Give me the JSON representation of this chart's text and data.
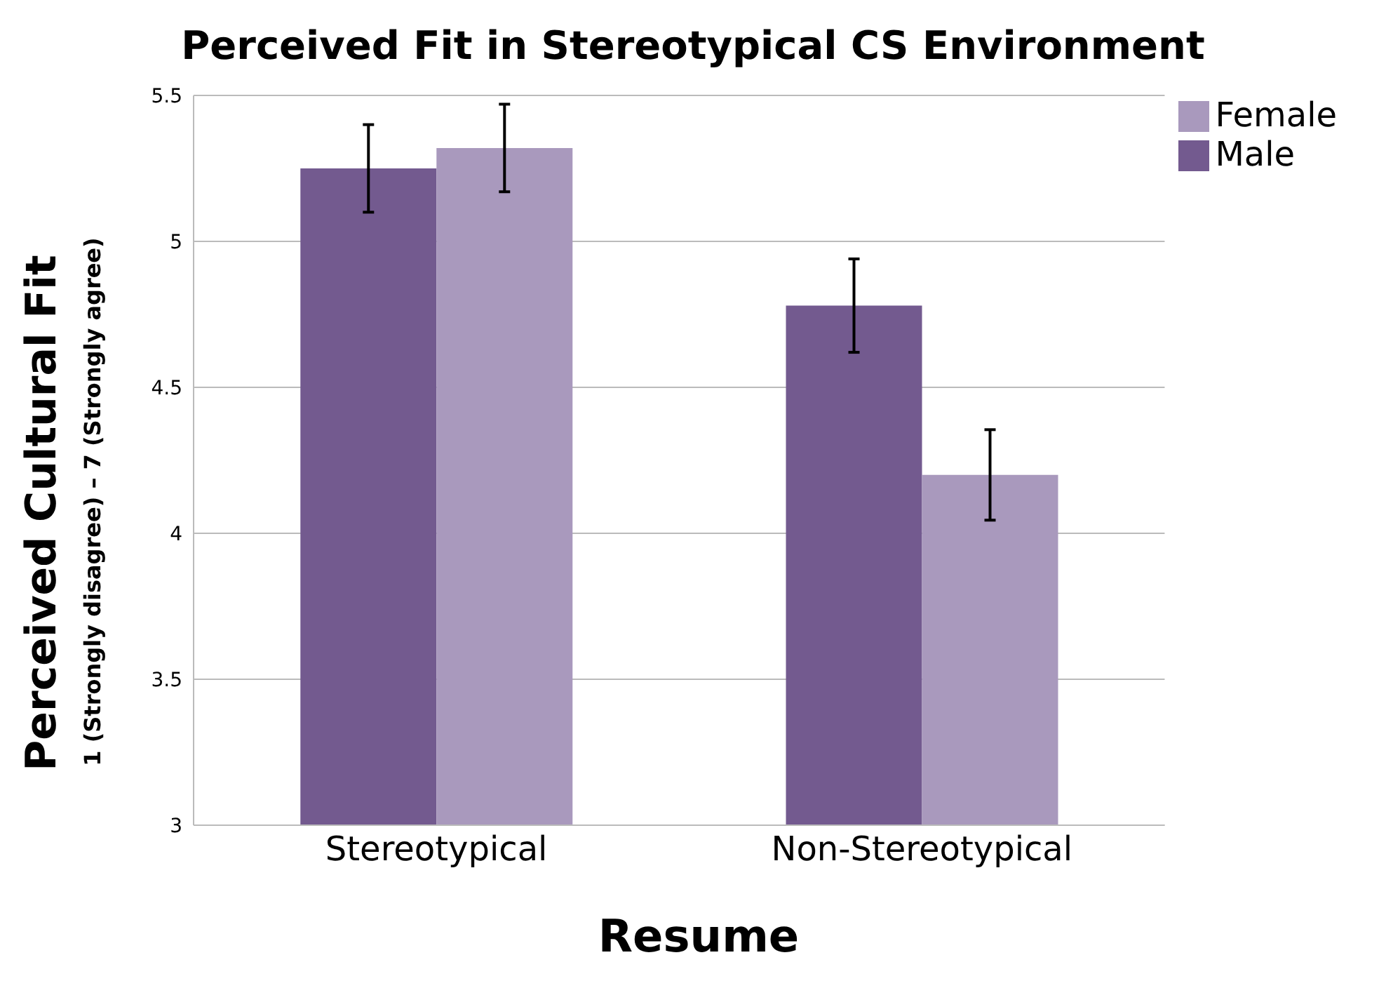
{
  "chart_data": {
    "type": "bar",
    "title": "Perceived Fit in Stereotypical CS Environment",
    "xlabel": "Resume",
    "ylabel": "Perceived Cultural Fit\n1 (Strongly disagree) – 7 (Strongly agree)",
    "categories": [
      "Stereotypical",
      "Non-Stereotypical"
    ],
    "series": [
      {
        "name": "Male",
        "color": "#735a8f",
        "values": [
          5.25,
          4.78
        ],
        "errors": [
          0.15,
          0.16
        ]
      },
      {
        "name": "Female",
        "color": "#a999bd",
        "values": [
          5.32,
          4.2
        ],
        "errors": [
          0.15,
          0.155
        ]
      }
    ],
    "ylim": [
      3,
      5.5
    ],
    "yticks": [
      3,
      3.5,
      4,
      4.5,
      5,
      5.5
    ],
    "grid": "y",
    "legend": "top right"
  }
}
